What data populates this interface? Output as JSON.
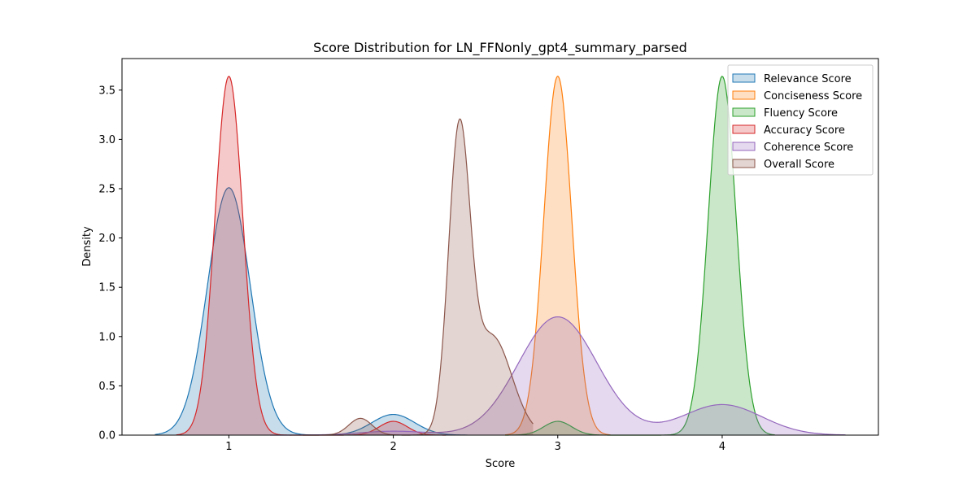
{
  "chart_data": {
    "type": "area",
    "title": "Score Distribution for LN_FFNonly_gpt4_summary_parsed",
    "xlabel": "Score",
    "ylabel": "Density",
    "xlim": [
      0.35,
      4.95
    ],
    "ylim": [
      0,
      3.82
    ],
    "xticks": [
      1,
      2,
      3,
      4
    ],
    "yticks": [
      0.0,
      0.5,
      1.0,
      1.5,
      2.0,
      2.5,
      3.0,
      3.5
    ],
    "legend_position": "top-right",
    "grid": false,
    "series": [
      {
        "name": "Relevance Score",
        "color": "#1f77b4",
        "range": [
          0.55,
          2.45
        ],
        "components": [
          {
            "center": 1.0,
            "height": 2.51,
            "sigma": 0.13
          },
          {
            "center": 2.0,
            "height": 0.21,
            "sigma": 0.13
          }
        ]
      },
      {
        "name": "Conciseness Score",
        "color": "#ff7f0e",
        "range": [
          2.68,
          3.32
        ],
        "components": [
          {
            "center": 3.0,
            "height": 3.64,
            "sigma": 0.085
          }
        ]
      },
      {
        "name": "Fluency Score",
        "color": "#2ca02c",
        "range": [
          2.68,
          4.32
        ],
        "components": [
          {
            "center": 3.0,
            "height": 0.14,
            "sigma": 0.085
          },
          {
            "center": 4.0,
            "height": 3.64,
            "sigma": 0.085
          }
        ]
      },
      {
        "name": "Accuracy Score",
        "color": "#d62728",
        "range": [
          0.68,
          2.32
        ],
        "components": [
          {
            "center": 1.0,
            "height": 3.64,
            "sigma": 0.085
          },
          {
            "center": 2.0,
            "height": 0.14,
            "sigma": 0.085
          }
        ]
      },
      {
        "name": "Coherence Score",
        "color": "#9467bd",
        "range": [
          1.25,
          4.75
        ],
        "components": [
          {
            "center": 2.0,
            "height": 0.04,
            "sigma": 0.2
          },
          {
            "center": 3.0,
            "height": 1.2,
            "sigma": 0.24
          },
          {
            "center": 4.0,
            "height": 0.31,
            "sigma": 0.24
          }
        ]
      },
      {
        "name": "Overall Score",
        "color": "#8c564b",
        "range": [
          1.45,
          2.85
        ],
        "components": [
          {
            "center": 1.8,
            "height": 0.17,
            "sigma": 0.07
          },
          {
            "center": 2.4,
            "height": 2.95,
            "sigma": 0.065
          },
          {
            "center": 2.6,
            "height": 1.0,
            "sigma": 0.12
          }
        ]
      }
    ]
  }
}
